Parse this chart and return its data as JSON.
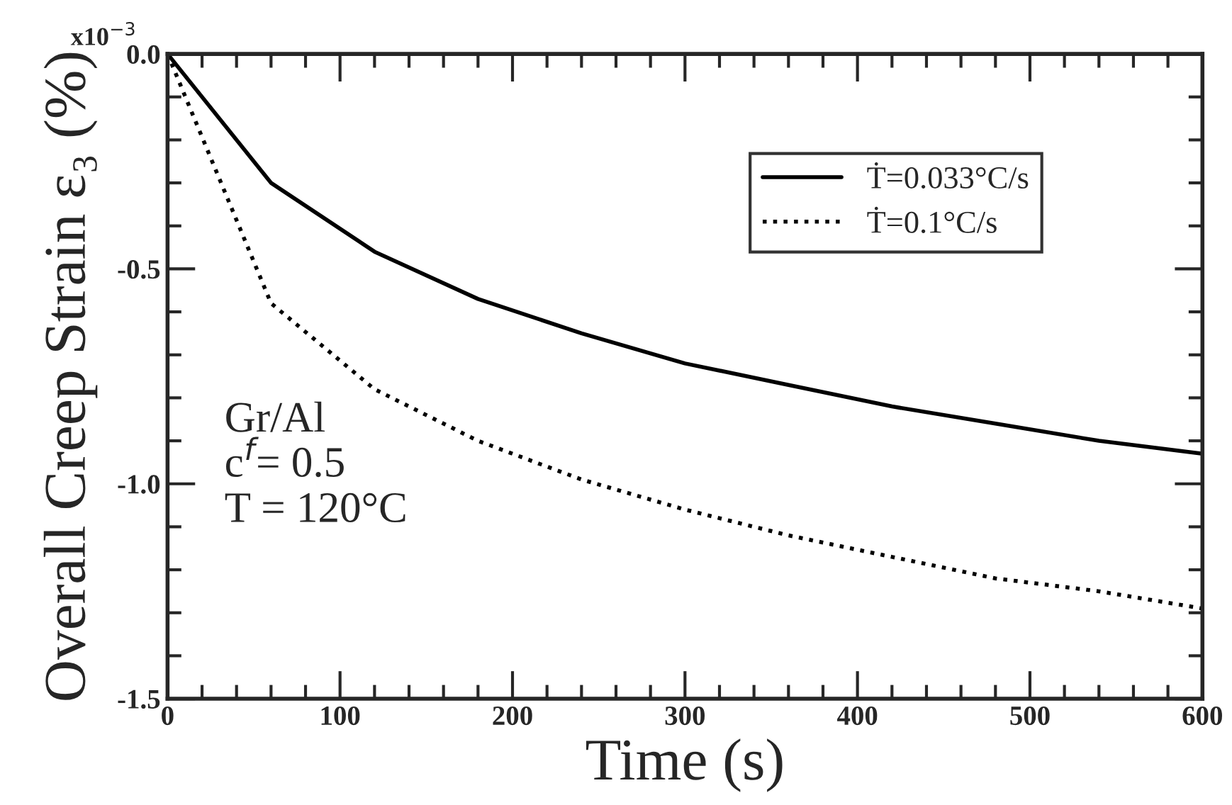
{
  "chart_data": {
    "type": "line",
    "xlabel": "Time (s)",
    "ylabel": "Overall Creep Strain ε₃ (%)",
    "x": [
      0,
      60,
      120,
      180,
      240,
      300,
      360,
      420,
      480,
      540,
      600
    ],
    "series": [
      {
        "name": "Ṫ=0.033°C/s",
        "color": "#000000",
        "line_style": "solid",
        "values": [
          0,
          -0.3,
          -0.46,
          -0.57,
          -0.65,
          -0.72,
          -0.77,
          -0.82,
          -0.86,
          -0.9,
          -0.93
        ]
      },
      {
        "name": "Ṫ=0.1°C/s",
        "color": "#000000",
        "line_style": "dotted",
        "values": [
          0,
          -0.58,
          -0.78,
          -0.9,
          -0.99,
          -1.06,
          -1.12,
          -1.17,
          -1.22,
          -1.25,
          -1.29
        ]
      }
    ],
    "xlim": [
      0,
      600
    ],
    "xticks": [
      0,
      100,
      200,
      300,
      400,
      500,
      600
    ],
    "ylim": [
      -1.5,
      0
    ],
    "yticks": [
      {
        "value": 0,
        "label": "0.0"
      },
      {
        "value": -0.5,
        "label": "-0.5"
      },
      {
        "value": -1.0,
        "label": "-1.0"
      },
      {
        "value": -1.5,
        "label": "-1.5"
      }
    ],
    "annotations": [
      "x10$^{−3}$",
      "Gr/Al",
      "c$^{f}$= 0.5",
      "T = 120°C"
    ],
    "legend": "top right",
    "grid": false
  }
}
